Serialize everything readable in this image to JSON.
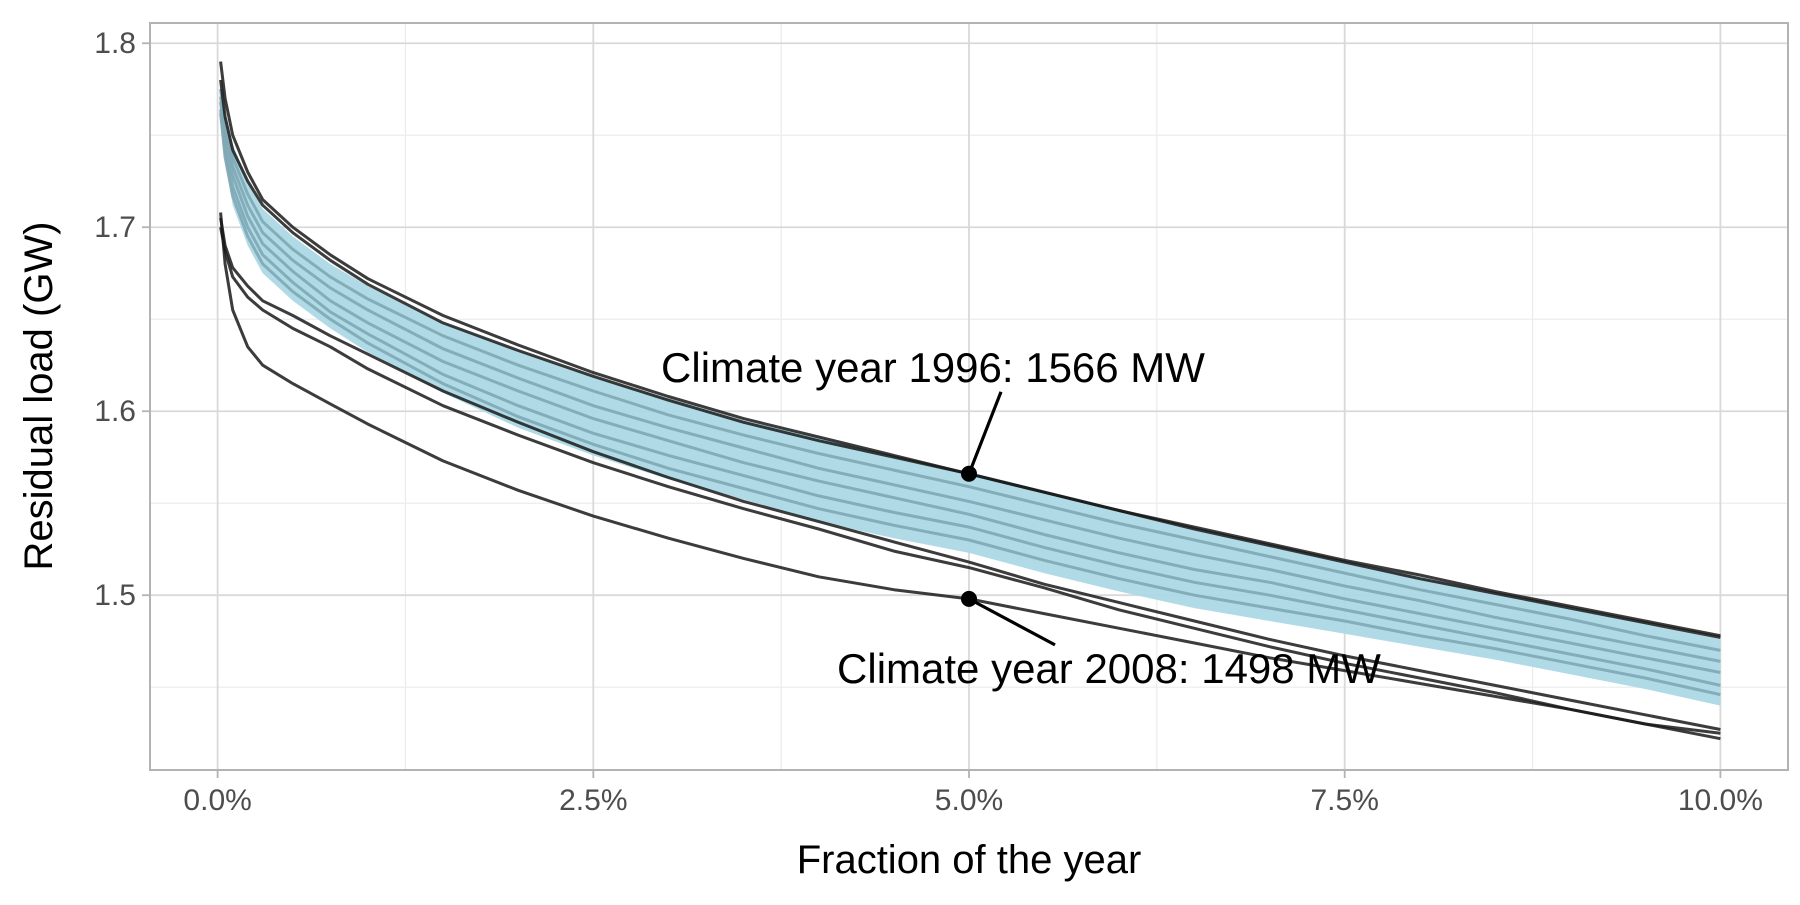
{
  "chart_data": {
    "type": "line",
    "title": "",
    "xlabel": "Fraction of the year",
    "ylabel": "Residual load (GW)",
    "x_unit": "fraction of year (%)",
    "y_unit": "GW",
    "xlim": [
      -0.45,
      10.45
    ],
    "ylim": [
      1.405,
      1.811
    ],
    "x_ticks": [
      0.0,
      2.5,
      5.0,
      7.5,
      10.0
    ],
    "x_tick_labels": [
      "0.0%",
      "2.5%",
      "5.0%",
      "7.5%",
      "10.0%"
    ],
    "y_ticks": [
      1.5,
      1.6,
      1.7,
      1.8
    ],
    "y_tick_labels": [
      "1.5",
      "1.6",
      "1.7",
      "1.8"
    ],
    "grid": true,
    "legend": "none",
    "colors": {
      "ensemble_fill": "#add8e6",
      "ensemble_line": "#7fa7b5",
      "extreme_line": "#1a1a1a",
      "panel_border": "#b3b3b3",
      "grid_major": "#d9d9d9",
      "grid_minor": "#ebebeb"
    },
    "x": [
      0.02,
      0.05,
      0.1,
      0.2,
      0.3,
      0.5,
      0.75,
      1.0,
      1.5,
      2.0,
      2.5,
      3.0,
      3.5,
      4.0,
      4.5,
      5.0,
      5.5,
      6.0,
      6.5,
      7.0,
      7.5,
      8.0,
      8.5,
      9.0,
      9.5,
      10.0
    ],
    "envelope": {
      "upper": [
        1.78,
        1.76,
        1.745,
        1.725,
        1.71,
        1.695,
        1.68,
        1.668,
        1.648,
        1.633,
        1.619,
        1.607,
        1.595,
        1.586,
        1.576,
        1.567,
        1.557,
        1.547,
        1.537,
        1.528,
        1.519,
        1.51,
        1.501,
        1.493,
        1.485,
        1.476
      ],
      "lower": [
        1.76,
        1.735,
        1.712,
        1.69,
        1.675,
        1.66,
        1.645,
        1.632,
        1.61,
        1.591,
        1.576,
        1.563,
        1.552,
        1.54,
        1.531,
        1.523,
        1.512,
        1.502,
        1.493,
        1.486,
        1.479,
        1.472,
        1.465,
        1.457,
        1.449,
        1.44
      ]
    },
    "ensemble_series": [
      [
        1.775,
        1.755,
        1.738,
        1.718,
        1.703,
        1.688,
        1.673,
        1.661,
        1.641,
        1.625,
        1.611,
        1.598,
        1.587,
        1.577,
        1.568,
        1.559,
        1.549,
        1.539,
        1.53,
        1.521,
        1.512,
        1.503,
        1.495,
        1.487,
        1.478,
        1.47
      ],
      [
        1.771,
        1.751,
        1.733,
        1.712,
        1.697,
        1.682,
        1.667,
        1.655,
        1.634,
        1.618,
        1.603,
        1.591,
        1.58,
        1.569,
        1.56,
        1.551,
        1.541,
        1.531,
        1.522,
        1.514,
        1.505,
        1.497,
        1.488,
        1.48,
        1.472,
        1.464
      ],
      [
        1.768,
        1.747,
        1.728,
        1.706,
        1.691,
        1.676,
        1.66,
        1.648,
        1.627,
        1.611,
        1.596,
        1.584,
        1.572,
        1.562,
        1.553,
        1.544,
        1.533,
        1.523,
        1.514,
        1.507,
        1.498,
        1.49,
        1.482,
        1.474,
        1.466,
        1.458
      ],
      [
        1.764,
        1.742,
        1.722,
        1.7,
        1.685,
        1.67,
        1.654,
        1.642,
        1.62,
        1.603,
        1.588,
        1.576,
        1.565,
        1.554,
        1.545,
        1.537,
        1.526,
        1.516,
        1.507,
        1.5,
        1.492,
        1.484,
        1.476,
        1.468,
        1.46,
        1.451
      ],
      [
        1.762,
        1.738,
        1.717,
        1.695,
        1.68,
        1.665,
        1.65,
        1.637,
        1.615,
        1.597,
        1.582,
        1.569,
        1.558,
        1.547,
        1.538,
        1.53,
        1.519,
        1.509,
        1.5,
        1.493,
        1.486,
        1.478,
        1.471,
        1.463,
        1.455,
        1.446
      ]
    ],
    "extreme_series": [
      {
        "values": [
          1.79,
          1.77,
          1.75,
          1.73,
          1.715,
          1.7,
          1.685,
          1.672,
          1.652,
          1.636,
          1.621,
          1.608,
          1.596,
          1.586,
          1.576,
          1.566,
          1.556,
          1.546,
          1.536,
          1.527,
          1.518,
          1.509,
          1.501,
          1.493,
          1.485,
          1.477
        ]
      },
      {
        "values": [
          1.78,
          1.76,
          1.742,
          1.725,
          1.712,
          1.697,
          1.682,
          1.669,
          1.648,
          1.633,
          1.619,
          1.606,
          1.594,
          1.584,
          1.575,
          1.566,
          1.556,
          1.546,
          1.537,
          1.528,
          1.519,
          1.511,
          1.502,
          1.494,
          1.486,
          1.478
        ]
      },
      {
        "values": [
          1.705,
          1.69,
          1.678,
          1.668,
          1.66,
          1.652,
          1.641,
          1.631,
          1.611,
          1.594,
          1.578,
          1.564,
          1.551,
          1.54,
          1.529,
          1.518,
          1.506,
          1.496,
          1.486,
          1.476,
          1.467,
          1.459,
          1.451,
          1.443,
          1.435,
          1.427
        ]
      },
      {
        "values": [
          1.7,
          1.687,
          1.673,
          1.662,
          1.655,
          1.645,
          1.635,
          1.623,
          1.603,
          1.587,
          1.572,
          1.559,
          1.547,
          1.536,
          1.524,
          1.515,
          1.504,
          1.492,
          1.482,
          1.472,
          1.463,
          1.455,
          1.447,
          1.438,
          1.43,
          1.422
        ]
      },
      {
        "values": [
          1.708,
          1.68,
          1.655,
          1.635,
          1.625,
          1.615,
          1.604,
          1.593,
          1.573,
          1.557,
          1.543,
          1.531,
          1.52,
          1.51,
          1.503,
          1.498,
          1.49,
          1.482,
          1.474,
          1.466,
          1.459,
          1.452,
          1.445,
          1.438,
          1.43,
          1.425
        ]
      }
    ],
    "annotations": [
      {
        "label": "Climate year 1996: 1566 MW",
        "x": 5.0,
        "y": 1.566,
        "placement": "above-left"
      },
      {
        "label": "Climate year 2008: 1498 MW",
        "x": 5.0,
        "y": 1.498,
        "placement": "below-right"
      }
    ]
  }
}
